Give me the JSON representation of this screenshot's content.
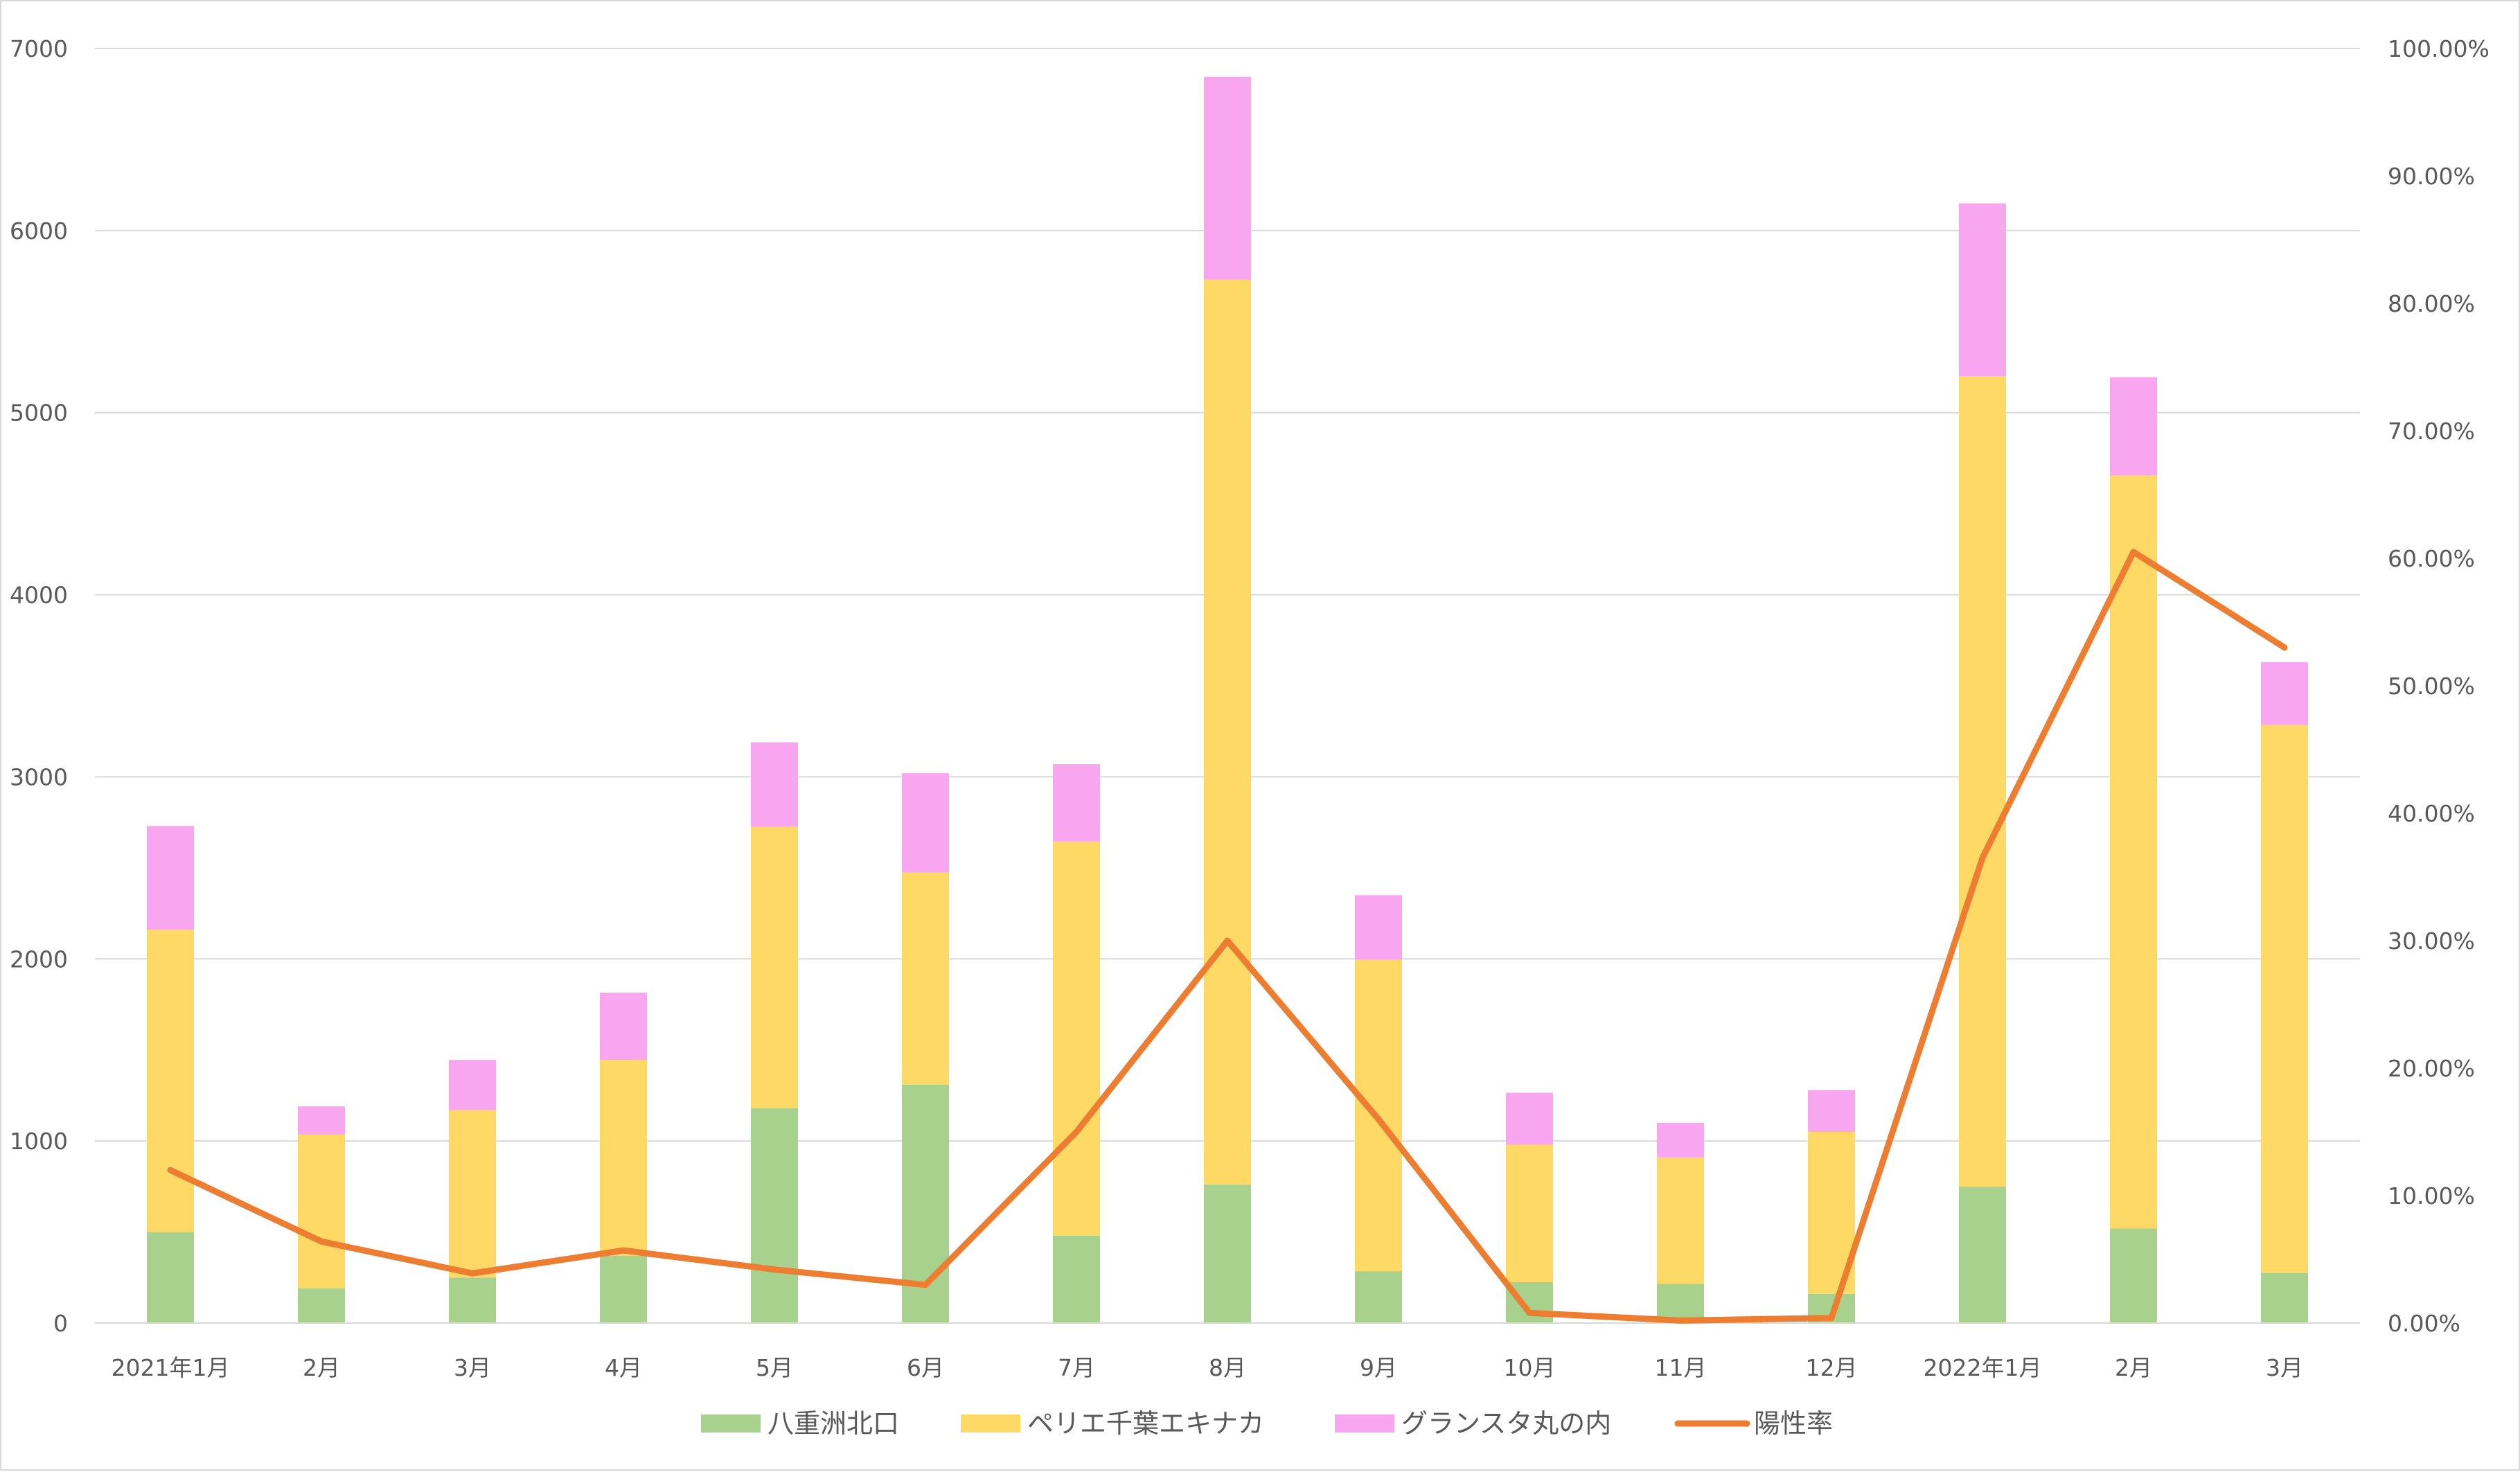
{
  "chart_data": {
    "type": "bar",
    "stacked": true,
    "categories": [
      "2021年1月",
      "2月",
      "3月",
      "4月",
      "5月",
      "6月",
      "7月",
      "8月",
      "9月",
      "10月",
      "11月",
      "12月",
      "2022年1月",
      "2月",
      "3月"
    ],
    "series": [
      {
        "name": "八重洲北口",
        "type": "bar",
        "axis": "left",
        "color": "#a9d18e",
        "values": [
          500,
          190,
          250,
          370,
          1180,
          1310,
          480,
          760,
          285,
          225,
          215,
          160,
          750,
          520,
          275
        ]
      },
      {
        "name": "ペリエ千葉エキナカ",
        "type": "bar",
        "axis": "left",
        "color": "#ffd966",
        "values": [
          1660,
          845,
          920,
          1075,
          1545,
          1165,
          2165,
          4970,
          1710,
          755,
          695,
          890,
          4450,
          4135,
          3010
        ]
      },
      {
        "name": "グランスタ丸の内",
        "type": "bar",
        "axis": "left",
        "color": "#f9a6f0",
        "values": [
          570,
          155,
          275,
          370,
          465,
          545,
          425,
          1115,
          355,
          285,
          190,
          230,
          950,
          540,
          345
        ]
      },
      {
        "name": "陽性率",
        "type": "line",
        "axis": "right",
        "color": "#ed7d31",
        "values": [
          0.12,
          0.064,
          0.039,
          0.057,
          0.042,
          0.03,
          0.15,
          0.3,
          0.16,
          0.008,
          0.002,
          0.004,
          0.365,
          0.605,
          0.53
        ]
      }
    ],
    "y_left": {
      "min": 0,
      "max": 7000,
      "ticks": [
        "0",
        "1000",
        "2000",
        "3000",
        "4000",
        "5000",
        "6000",
        "7000"
      ]
    },
    "y_right": {
      "min": 0,
      "max": 1,
      "ticks": [
        "0.00%",
        "10.00%",
        "20.00%",
        "30.00%",
        "40.00%",
        "50.00%",
        "60.00%",
        "70.00%",
        "80.00%",
        "90.00%",
        "100.00%"
      ]
    },
    "grid": true,
    "legend": "bottom",
    "title": "",
    "xlabel": "",
    "ylabel": ""
  }
}
